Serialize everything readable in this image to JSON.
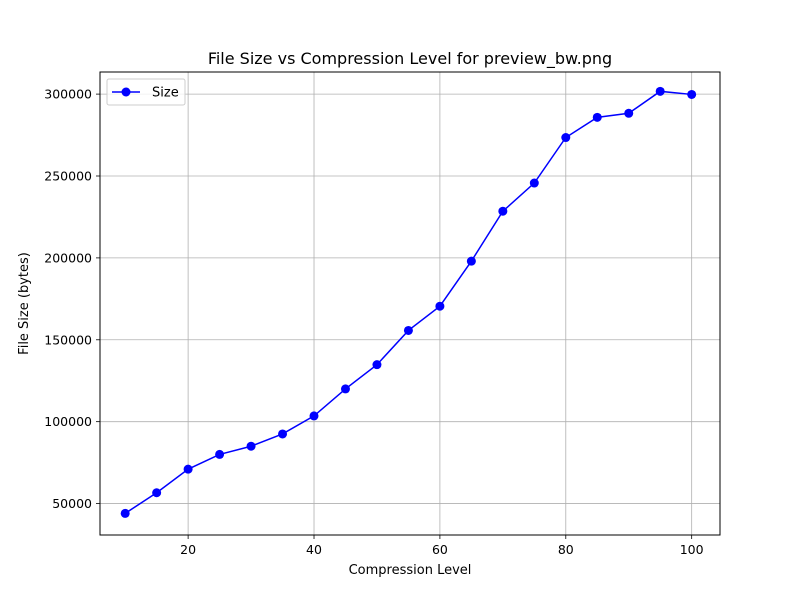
{
  "chart_data": {
    "type": "line",
    "title": "File Size vs Compression Level for preview_bw.png",
    "xlabel": "Compression Level",
    "ylabel": "File Size (bytes)",
    "xlim": [
      6,
      104.5
    ],
    "ylim": [
      30800,
      313500
    ],
    "xticks": [
      20,
      40,
      60,
      80,
      100
    ],
    "yticks": [
      50000,
      100000,
      150000,
      200000,
      250000,
      300000
    ],
    "grid": true,
    "legend": {
      "position": "top-left"
    },
    "series": [
      {
        "name": "Size",
        "color": "#0000ff",
        "marker": "circle",
        "x": [
          10,
          15,
          20,
          25,
          30,
          35,
          40,
          45,
          50,
          55,
          60,
          65,
          70,
          75,
          80,
          85,
          90,
          95,
          100
        ],
        "y": [
          44000,
          56600,
          71000,
          80000,
          85000,
          92500,
          103500,
          120000,
          134800,
          155700,
          170500,
          198000,
          228500,
          245700,
          273500,
          285800,
          288300,
          301700,
          299800
        ]
      }
    ]
  }
}
